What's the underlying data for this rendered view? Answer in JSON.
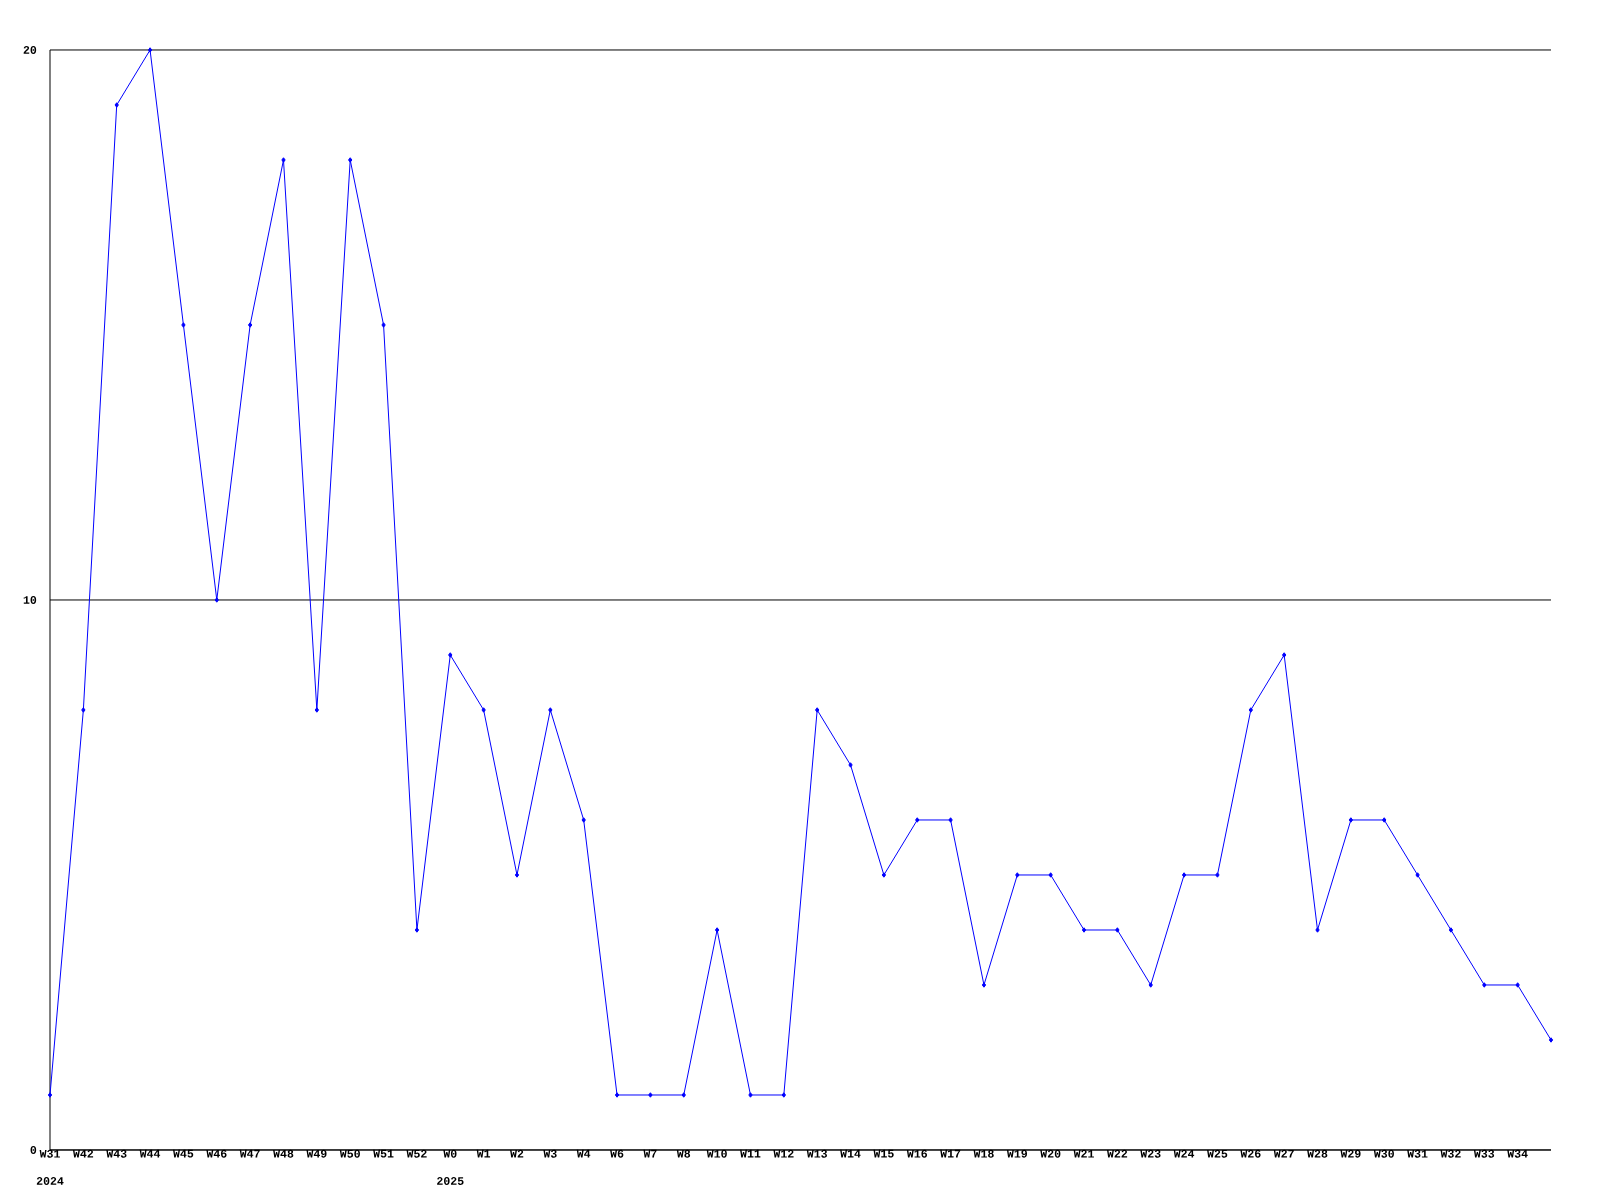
{
  "chart_data": {
    "type": "line",
    "categories": [
      "W31",
      "W42",
      "W43",
      "W44",
      "W45",
      "W46",
      "W47",
      "W48",
      "W49",
      "W50",
      "W51",
      "W52",
      "W0",
      "W1",
      "W2",
      "W3",
      "W4",
      "W6",
      "W7",
      "W8",
      "W10",
      "W11",
      "W12",
      "W13",
      "W14",
      "W15",
      "W16",
      "W17",
      "W18",
      "W19",
      "W20",
      "W21",
      "W22",
      "W23",
      "W24",
      "W25",
      "W26",
      "W27",
      "W28",
      "W29",
      "W30",
      "W31",
      "W32",
      "W33",
      "W34",
      null
    ],
    "values": [
      1,
      8,
      19,
      20,
      15,
      10,
      15,
      18,
      8,
      18,
      15,
      4,
      9,
      8,
      5,
      8,
      6,
      1,
      1,
      1,
      4,
      1,
      1,
      8,
      7,
      5,
      6,
      6,
      3,
      5,
      5,
      4,
      4,
      3,
      5,
      5,
      8,
      9,
      4,
      6,
      6,
      5,
      4,
      3,
      3,
      2
    ],
    "color": "#0000ff",
    "marker": "diamond",
    "line_style": "solid",
    "ylim": [
      0,
      20
    ],
    "yticks": [
      0,
      10,
      20
    ],
    "grid": "y",
    "annotations": [
      "2024",
      "2025"
    ]
  }
}
